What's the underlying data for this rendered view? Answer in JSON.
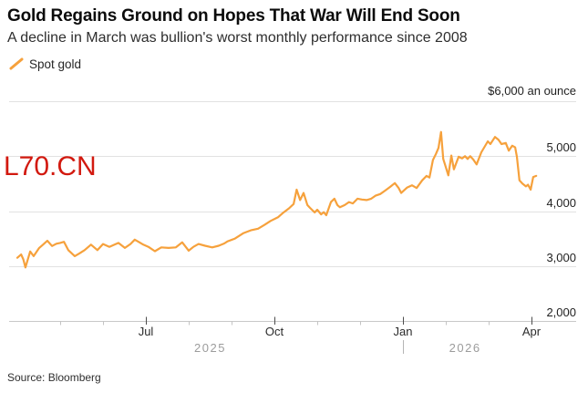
{
  "header": {
    "title": "Gold Regains Ground on Hopes That War Will End Soon",
    "subtitle": "A decline in March was bullion's worst monthly performance since 2008"
  },
  "legend": {
    "label": "Spot gold"
  },
  "watermark": {
    "text": "L70.CN",
    "color": "#d2190f"
  },
  "footer": {
    "source": "Source: Bloomberg"
  },
  "chart_data": {
    "type": "line",
    "title": "Gold Regains Ground on Hopes That War Will End Soon",
    "subtitle": "A decline in March was bullion's worst monthly performance since 2008",
    "legend_entries": [
      "Spot gold"
    ],
    "unit_label": "$6,000 an ounce",
    "line_color": "#f6a13c",
    "grid_color": "#e2e2e2",
    "axis_color": "#c9c9c9",
    "ylim": [
      2000,
      6000
    ],
    "grid": "horizontal-only",
    "legend_position": "top-left",
    "y_axis_side": "right",
    "y_gridline_values": [
      6000,
      5000,
      4000,
      3000,
      2000
    ],
    "y_tick_labels": [
      {
        "value": 5000,
        "label": "5,000"
      },
      {
        "value": 4000,
        "label": "4,000"
      },
      {
        "value": 3000,
        "label": "3,000"
      },
      {
        "value": 2000,
        "label": "2,000"
      }
    ],
    "x_unit": "months since 2025-04-01",
    "x_ticks_major": [
      {
        "t": 3,
        "label": "Jul"
      },
      {
        "t": 6,
        "label": "Oct"
      },
      {
        "t": 9,
        "label": "Jan"
      },
      {
        "t": 12,
        "label": "Apr"
      }
    ],
    "x_ticks_minor": [
      1,
      2,
      4,
      5,
      7,
      8,
      10,
      11
    ],
    "year_labels": [
      {
        "t": 4.5,
        "label": "2025"
      },
      {
        "t": 10.45,
        "label": "2026"
      }
    ],
    "year_separator_t": 9,
    "series": [
      {
        "name": "Spot gold",
        "color": "#f6a13c",
        "points": [
          [
            0.0,
            3150
          ],
          [
            0.09,
            3210
          ],
          [
            0.14,
            3120
          ],
          [
            0.19,
            2975
          ],
          [
            0.3,
            3265
          ],
          [
            0.38,
            3180
          ],
          [
            0.51,
            3330
          ],
          [
            0.6,
            3390
          ],
          [
            0.7,
            3460
          ],
          [
            0.81,
            3365
          ],
          [
            0.91,
            3405
          ],
          [
            1.0,
            3420
          ],
          [
            1.09,
            3440
          ],
          [
            1.19,
            3290
          ],
          [
            1.34,
            3180
          ],
          [
            1.45,
            3230
          ],
          [
            1.57,
            3290
          ],
          [
            1.72,
            3390
          ],
          [
            1.87,
            3290
          ],
          [
            2.0,
            3400
          ],
          [
            2.15,
            3350
          ],
          [
            2.36,
            3420
          ],
          [
            2.51,
            3330
          ],
          [
            2.64,
            3400
          ],
          [
            2.74,
            3480
          ],
          [
            2.85,
            3430
          ],
          [
            2.94,
            3390
          ],
          [
            3.06,
            3350
          ],
          [
            3.21,
            3270
          ],
          [
            3.36,
            3340
          ],
          [
            3.53,
            3330
          ],
          [
            3.7,
            3340
          ],
          [
            3.85,
            3430
          ],
          [
            4.0,
            3280
          ],
          [
            4.11,
            3350
          ],
          [
            4.23,
            3400
          ],
          [
            4.38,
            3370
          ],
          [
            4.55,
            3340
          ],
          [
            4.7,
            3370
          ],
          [
            4.83,
            3410
          ],
          [
            4.91,
            3450
          ],
          [
            5.08,
            3500
          ],
          [
            5.28,
            3600
          ],
          [
            5.45,
            3650
          ],
          [
            5.62,
            3680
          ],
          [
            5.77,
            3750
          ],
          [
            5.91,
            3820
          ],
          [
            6.09,
            3890
          ],
          [
            6.19,
            3960
          ],
          [
            6.34,
            4050
          ],
          [
            6.45,
            4130
          ],
          [
            6.52,
            4390
          ],
          [
            6.6,
            4200
          ],
          [
            6.68,
            4330
          ],
          [
            6.77,
            4110
          ],
          [
            6.83,
            4060
          ],
          [
            6.94,
            3975
          ],
          [
            7.0,
            4025
          ],
          [
            7.09,
            3940
          ],
          [
            7.15,
            3980
          ],
          [
            7.21,
            3925
          ],
          [
            7.32,
            4165
          ],
          [
            7.4,
            4225
          ],
          [
            7.47,
            4110
          ],
          [
            7.53,
            4070
          ],
          [
            7.64,
            4110
          ],
          [
            7.74,
            4165
          ],
          [
            7.83,
            4140
          ],
          [
            7.94,
            4225
          ],
          [
            8.04,
            4210
          ],
          [
            8.15,
            4200
          ],
          [
            8.26,
            4225
          ],
          [
            8.36,
            4280
          ],
          [
            8.47,
            4310
          ],
          [
            8.57,
            4365
          ],
          [
            8.7,
            4440
          ],
          [
            8.81,
            4510
          ],
          [
            8.9,
            4420
          ],
          [
            8.96,
            4330
          ],
          [
            9.1,
            4430
          ],
          [
            9.21,
            4470
          ],
          [
            9.32,
            4420
          ],
          [
            9.45,
            4560
          ],
          [
            9.55,
            4640
          ],
          [
            9.62,
            4610
          ],
          [
            9.7,
            4930
          ],
          [
            9.77,
            5040
          ],
          [
            9.83,
            5150
          ],
          [
            9.89,
            5440
          ],
          [
            9.94,
            4950
          ],
          [
            9.98,
            4850
          ],
          [
            10.06,
            4650
          ],
          [
            10.13,
            5010
          ],
          [
            10.19,
            4760
          ],
          [
            10.3,
            4990
          ],
          [
            10.38,
            4960
          ],
          [
            10.45,
            5000
          ],
          [
            10.51,
            4950
          ],
          [
            10.57,
            5000
          ],
          [
            10.64,
            4940
          ],
          [
            10.72,
            4850
          ],
          [
            10.83,
            5070
          ],
          [
            10.98,
            5270
          ],
          [
            11.04,
            5220
          ],
          [
            11.15,
            5350
          ],
          [
            11.23,
            5300
          ],
          [
            11.3,
            5220
          ],
          [
            11.4,
            5240
          ],
          [
            11.47,
            5100
          ],
          [
            11.55,
            5190
          ],
          [
            11.62,
            5160
          ],
          [
            11.66,
            4990
          ],
          [
            11.72,
            4560
          ],
          [
            11.79,
            4500
          ],
          [
            11.87,
            4450
          ],
          [
            11.92,
            4480
          ],
          [
            11.98,
            4390
          ],
          [
            12.04,
            4620
          ],
          [
            12.11,
            4640
          ]
        ]
      }
    ]
  }
}
